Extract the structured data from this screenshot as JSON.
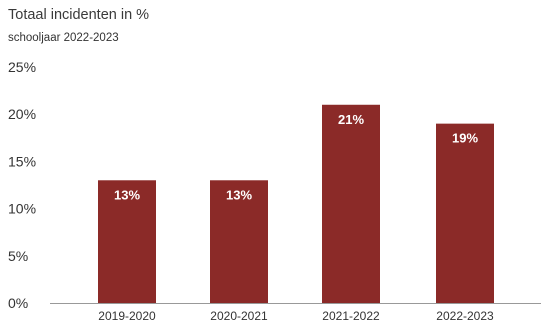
{
  "chart_data": {
    "type": "bar",
    "title": "Totaal incidenten in %",
    "subtitle": "schooljaar 2022-2023",
    "categories": [
      "2019-2020",
      "2020-2021",
      "2021-2022",
      "2022-2023"
    ],
    "values": [
      13,
      13,
      21,
      19
    ],
    "data_labels": [
      "13%",
      "13%",
      "21%",
      "19%"
    ],
    "y_ticks": [
      0,
      5,
      10,
      15,
      20,
      25
    ],
    "y_tick_labels": [
      "0%",
      "5%",
      "10%",
      "15%",
      "20%",
      "25%"
    ],
    "ylim": [
      0,
      25
    ],
    "grid": false,
    "bar_color": "#8b2a28",
    "axis_color": "#999999"
  }
}
